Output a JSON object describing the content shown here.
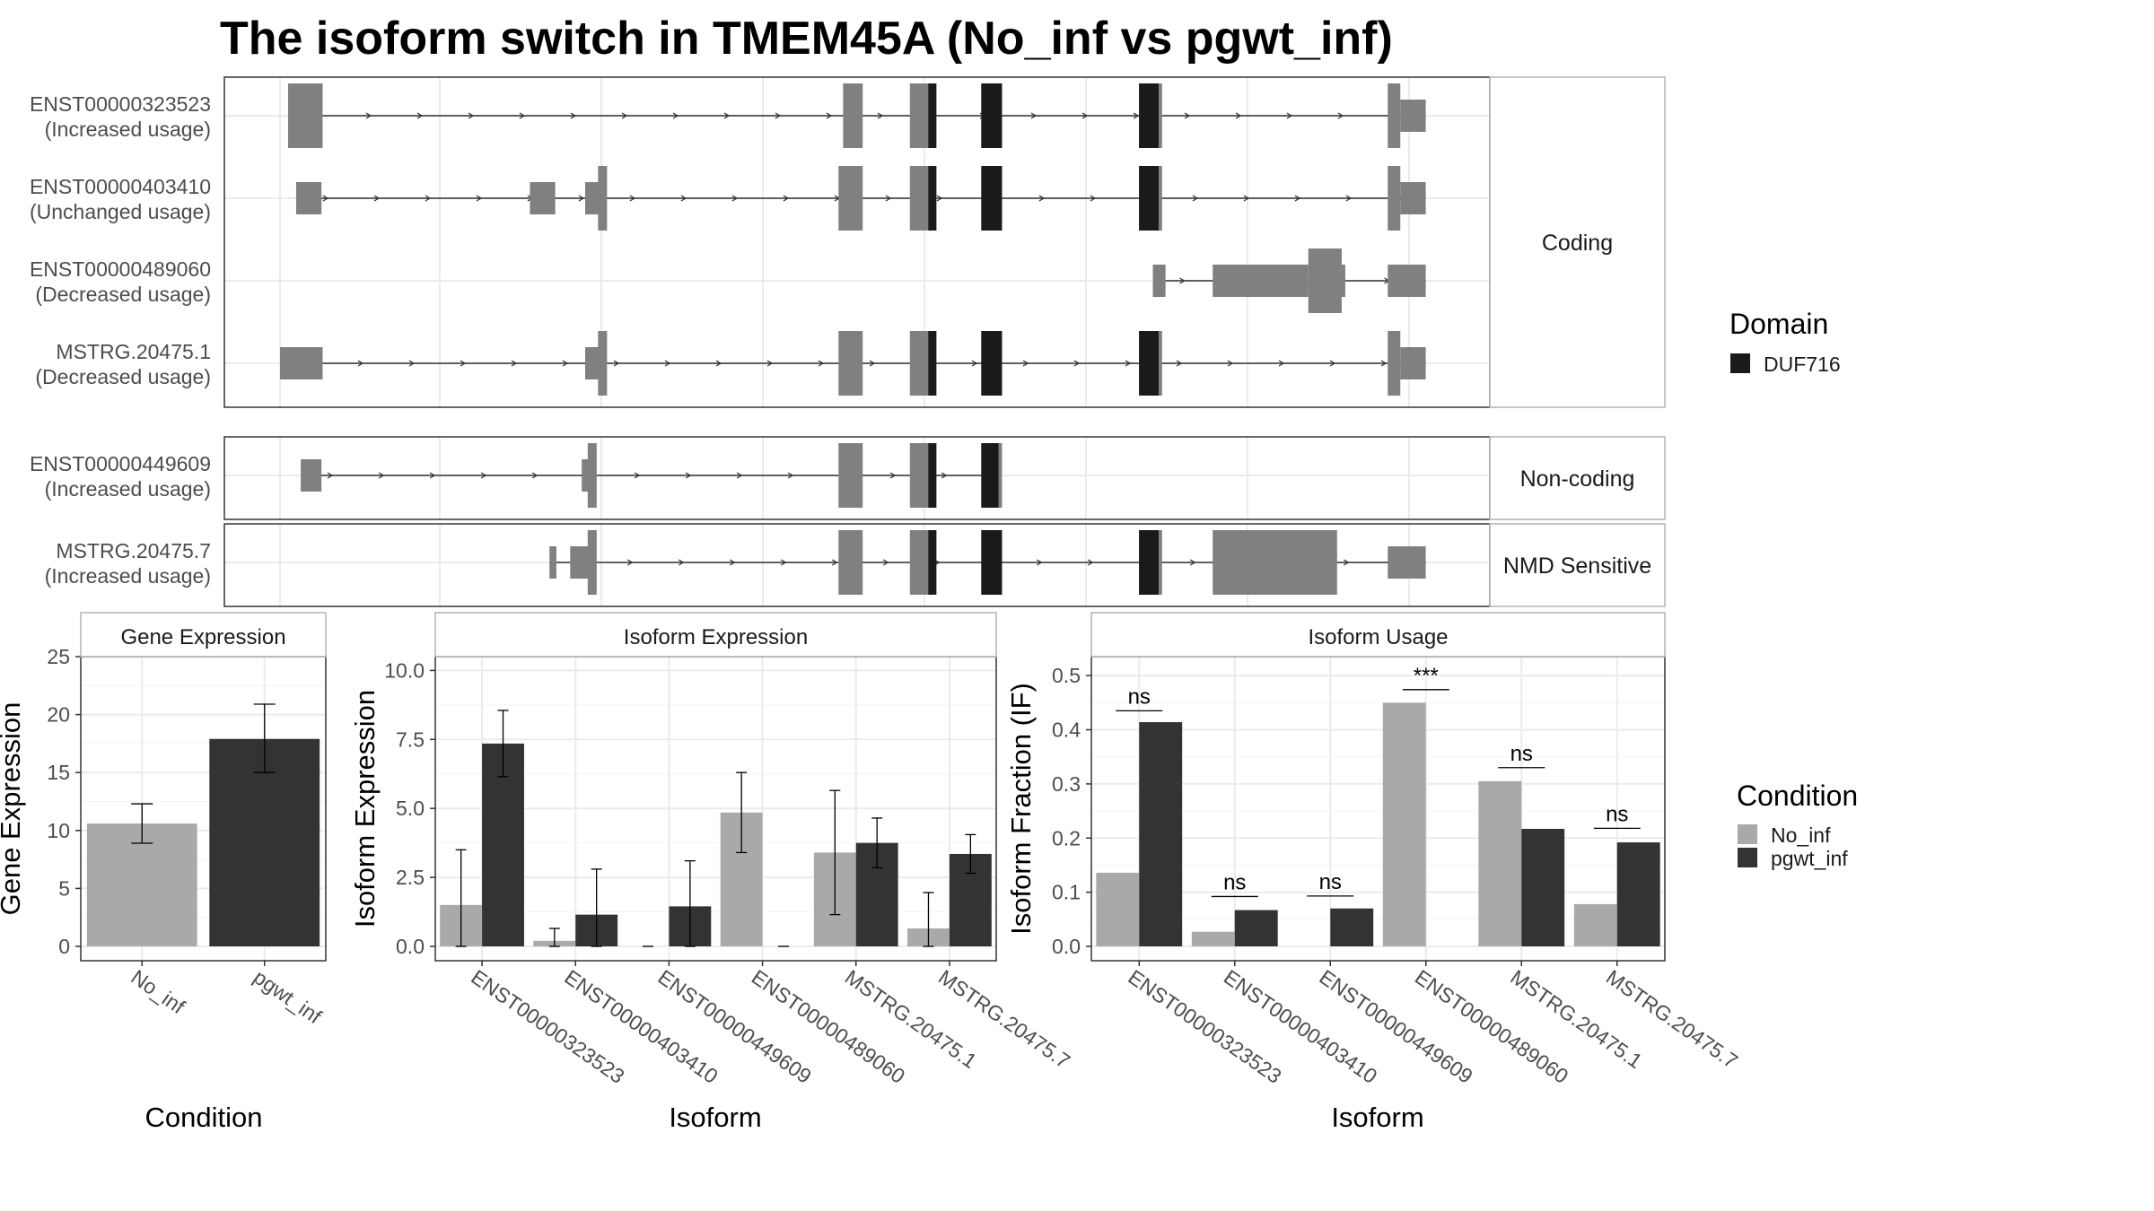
{
  "title": "The isoform switch in TMEM45A (No_inf vs pgwt_inf)",
  "colors": {
    "exon": "#808080",
    "domain": "#1a1a1a",
    "no_inf": "#a9a9a9",
    "pgwt_inf": "#333333",
    "grid": "#ebebeb",
    "panel_border": "#333333",
    "strip_border": "#b3b3b3"
  },
  "gene_model": {
    "facets": [
      {
        "label": "Coding",
        "transcripts": [
          {
            "id": "ENST00000323523",
            "usage": "(Increased usage)",
            "intron": [
              0.007,
              0.995
            ],
            "exons": [
              [
                0.007,
                0.037,
                "big"
              ],
              [
                0.489,
                0.506,
                "big"
              ],
              [
                0.547,
                0.57,
                "big"
              ],
              [
                0.609,
                0.627,
                "big"
              ],
              [
                0.746,
                0.766,
                "big"
              ],
              [
                0.962,
                0.995,
                "utr3"
              ]
            ],
            "domains": [
              [
                0.563,
                0.57
              ],
              [
                0.609,
                0.627
              ],
              [
                0.746,
                0.763
              ]
            ]
          },
          {
            "id": "ENST00000403410",
            "usage": "(Unchanged usage)",
            "intron": [
              0.014,
              0.995
            ],
            "exons": [
              [
                0.014,
                0.036,
                "small"
              ],
              [
                0.217,
                0.239,
                "small"
              ],
              [
                0.265,
                0.284,
                "cds_up"
              ],
              [
                0.485,
                0.506,
                "big"
              ],
              [
                0.547,
                0.57,
                "big"
              ],
              [
                0.609,
                0.627,
                "big"
              ],
              [
                0.746,
                0.766,
                "big"
              ],
              [
                0.962,
                0.995,
                "utr3"
              ]
            ],
            "domains": [
              [
                0.563,
                0.57
              ],
              [
                0.609,
                0.627
              ],
              [
                0.746,
                0.763
              ]
            ]
          },
          {
            "id": "ENST00000489060",
            "usage": "(Decreased usage)",
            "intron": [
              0.758,
              0.995
            ],
            "exons": [
              [
                0.758,
                0.769,
                "small"
              ],
              [
                0.81,
                0.922,
                "mixed"
              ],
              [
                0.962,
                0.995,
                "small"
              ]
            ],
            "domains": []
          },
          {
            "id": "MSTRG.20475.1",
            "usage": "(Decreased usage)",
            "intron": [
              0.0,
              0.995
            ],
            "exons": [
              [
                0.0,
                0.037,
                "small"
              ],
              [
                0.265,
                0.284,
                "cds_up"
              ],
              [
                0.485,
                0.506,
                "big"
              ],
              [
                0.547,
                0.57,
                "big"
              ],
              [
                0.609,
                0.627,
                "big"
              ],
              [
                0.746,
                0.766,
                "big"
              ],
              [
                0.962,
                0.995,
                "utr3"
              ]
            ],
            "domains": [
              [
                0.563,
                0.57
              ],
              [
                0.609,
                0.627
              ],
              [
                0.746,
                0.763
              ]
            ]
          }
        ]
      },
      {
        "label": "Non-coding",
        "transcripts": [
          {
            "id": "ENST00000449609",
            "usage": "(Increased usage)",
            "intron": [
              0.018,
              0.624
            ],
            "exons": [
              [
                0.018,
                0.036,
                "small"
              ],
              [
                0.262,
                0.275,
                "cds_up"
              ],
              [
                0.485,
                0.506,
                "big"
              ],
              [
                0.547,
                0.57,
                "big"
              ],
              [
                0.609,
                0.627,
                "big_end"
              ]
            ],
            "domains": [
              [
                0.563,
                0.57
              ],
              [
                0.609,
                0.624
              ]
            ]
          }
        ]
      },
      {
        "label": "NMD Sensitive",
        "transcripts": [
          {
            "id": "MSTRG.20475.7",
            "usage": "(Increased usage)",
            "intron": [
              0.234,
              0.995
            ],
            "exons": [
              [
                0.234,
                0.24,
                "small"
              ],
              [
                0.252,
                0.275,
                "cds_up"
              ],
              [
                0.485,
                0.506,
                "big"
              ],
              [
                0.547,
                0.57,
                "big"
              ],
              [
                0.609,
                0.627,
                "big"
              ],
              [
                0.746,
                0.766,
                "big"
              ],
              [
                0.81,
                0.918,
                "big"
              ],
              [
                0.962,
                0.995,
                "small"
              ]
            ],
            "domains": [
              [
                0.563,
                0.57
              ],
              [
                0.609,
                0.627
              ],
              [
                0.746,
                0.763
              ]
            ]
          }
        ]
      }
    ],
    "domain_legend": {
      "title": "Domain",
      "items": [
        "DUF716"
      ]
    }
  },
  "chart_data": [
    {
      "type": "bar",
      "title": "Gene Expression",
      "xlabel": "Condition",
      "ylabel": "Gene Expression",
      "ylim": [
        0,
        25
      ],
      "yticks": [
        "0",
        "5",
        "10",
        "15",
        "20",
        "25"
      ],
      "categories": [
        "No_inf",
        "pgwt_inf"
      ],
      "values": [
        10.6,
        17.9
      ],
      "error_bars": [
        [
          8.9,
          12.3
        ],
        [
          15.0,
          20.9
        ]
      ],
      "series": [
        {
          "name": "No_inf"
        },
        {
          "name": "pgwt_inf"
        }
      ],
      "grid": true
    },
    {
      "type": "bar",
      "title": "Isoform Expression",
      "xlabel": "Isoform",
      "ylabel": "Isoform Expression",
      "ylim": [
        0,
        10.5
      ],
      "yticks": [
        "0.0",
        "2.5",
        "5.0",
        "7.5",
        "10.0"
      ],
      "categories": [
        "ENST00000323523",
        "ENST00000403410",
        "ENST00000449609",
        "ENST00000489060",
        "MSTRG.20475.1",
        "MSTRG.20475.7"
      ],
      "series": [
        {
          "name": "No_inf",
          "values": [
            1.5,
            0.2,
            0.0,
            4.85,
            3.4,
            0.65
          ],
          "error_bars": [
            [
              0,
              3.5
            ],
            [
              0,
              0.65
            ],
            [
              0,
              0
            ],
            [
              3.4,
              6.3
            ],
            [
              1.15,
              5.65
            ],
            [
              0,
              1.95
            ]
          ]
        },
        {
          "name": "pgwt_inf",
          "values": [
            7.35,
            1.15,
            1.45,
            0.0,
            3.75,
            3.35
          ],
          "error_bars": [
            [
              6.15,
              8.55
            ],
            [
              0,
              2.8
            ],
            [
              0,
              3.1
            ],
            [
              0,
              0
            ],
            [
              2.85,
              4.65
            ],
            [
              2.65,
              4.05
            ]
          ]
        }
      ],
      "grid": true
    },
    {
      "type": "bar",
      "title": "Isoform Usage",
      "xlabel": "Isoform",
      "ylabel": "Isoform Fraction (IF)",
      "ylim": [
        0,
        0.535
      ],
      "yticks": [
        "0.0",
        "0.1",
        "0.2",
        "0.3",
        "0.4",
        "0.5"
      ],
      "categories": [
        "ENST00000323523",
        "ENST00000403410",
        "ENST00000449609",
        "ENST00000489060",
        "MSTRG.20475.1",
        "MSTRG.20475.7"
      ],
      "series": [
        {
          "name": "No_inf",
          "values": [
            0.136,
            0.027,
            0.0,
            0.45,
            0.305,
            0.078
          ]
        },
        {
          "name": "pgwt_inf",
          "values": [
            0.414,
            0.067,
            0.07,
            0.0,
            0.217,
            0.192
          ]
        }
      ],
      "significance": [
        {
          "label": "ns",
          "y": 0.435
        },
        {
          "label": "ns",
          "y": 0.092
        },
        {
          "label": "ns",
          "y": 0.093
        },
        {
          "label": "***",
          "y": 0.474
        },
        {
          "label": "ns",
          "y": 0.33
        },
        {
          "label": "ns",
          "y": 0.218
        }
      ],
      "grid": true
    }
  ],
  "condition_legend": {
    "title": "Condition",
    "items": [
      "No_inf",
      "pgwt_inf"
    ]
  }
}
